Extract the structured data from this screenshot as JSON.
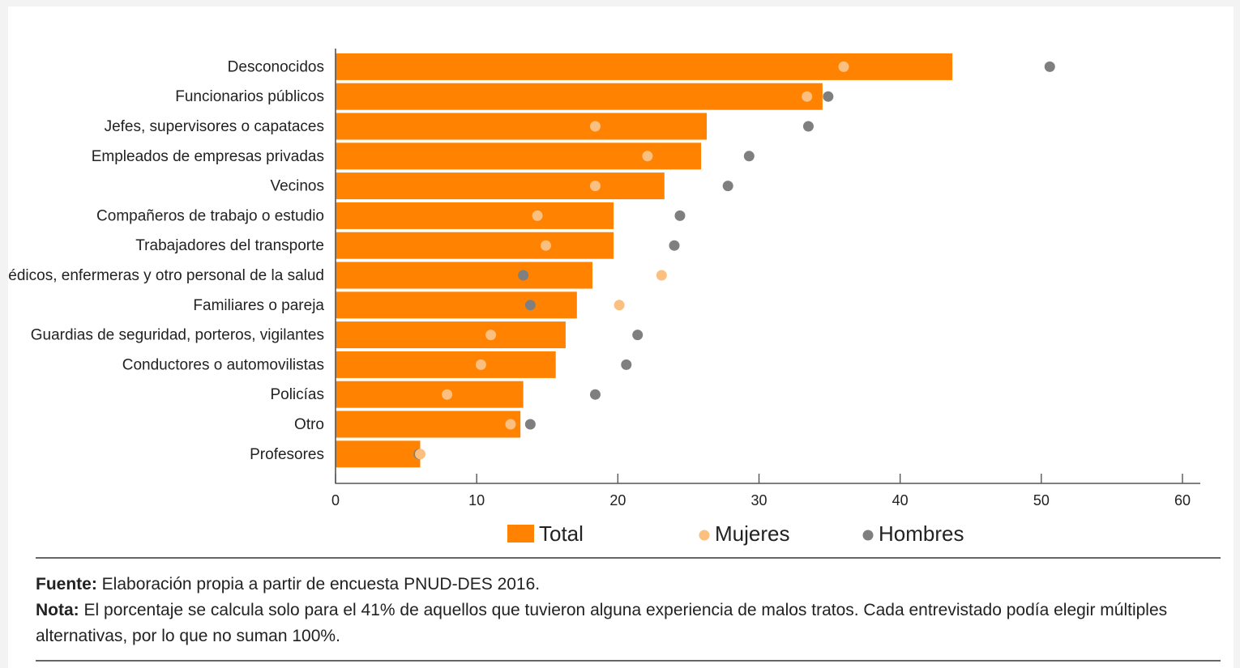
{
  "chart_data": {
    "type": "bar",
    "orientation": "horizontal",
    "categories": [
      "Desconocidos",
      "Funcionarios públicos",
      "Jefes, supervisores o capataces",
      "Empleados de empresas privadas",
      "Vecinos",
      "Compañeros de trabajo o estudio",
      "Trabajadores del transporte",
      "Médicos, enfermeras y otro personal de la salud",
      "Familiares o pareja",
      "Guardias de seguridad, porteros, vigilantes",
      "Conductores o automovilistas",
      "Policías",
      "Otro",
      "Profesores"
    ],
    "series": [
      {
        "name": "Total",
        "mark": "bar",
        "color": "#ff8200",
        "values": [
          43.7,
          34.5,
          26.3,
          25.9,
          23.3,
          19.7,
          19.7,
          18.2,
          17.1,
          16.3,
          15.6,
          13.3,
          13.1,
          6.0
        ]
      },
      {
        "name": "Mujeres",
        "mark": "dot",
        "color": "#fbbf80",
        "values": [
          36.0,
          33.4,
          18.4,
          22.1,
          18.4,
          14.3,
          14.9,
          23.1,
          20.1,
          11.0,
          10.3,
          7.9,
          12.4,
          6.0
        ]
      },
      {
        "name": "Hombres",
        "mark": "dot",
        "color": "#7f7f7f",
        "values": [
          50.6,
          34.9,
          33.5,
          29.3,
          27.8,
          24.4,
          24.0,
          13.3,
          13.8,
          21.4,
          20.6,
          18.4,
          13.8,
          5.9
        ]
      }
    ],
    "xlim": [
      0,
      60
    ],
    "xticks": [
      0,
      10,
      20,
      30,
      40,
      50,
      60
    ],
    "xlabel": "",
    "ylabel": "",
    "grid": false,
    "legend_position": "bottom"
  },
  "notes": {
    "source_label": "Fuente:",
    "source_text": " Elaboración propia a partir de encuesta PNUD-DES 2016.",
    "note_label": "Nota:",
    "note_text": " El porcentaje se calcula solo para el 41% de aquellos que tuvieron alguna experiencia de malos tratos. Cada entrevistado podía elegir múltiples alternativas, por lo que no suman 100%."
  }
}
